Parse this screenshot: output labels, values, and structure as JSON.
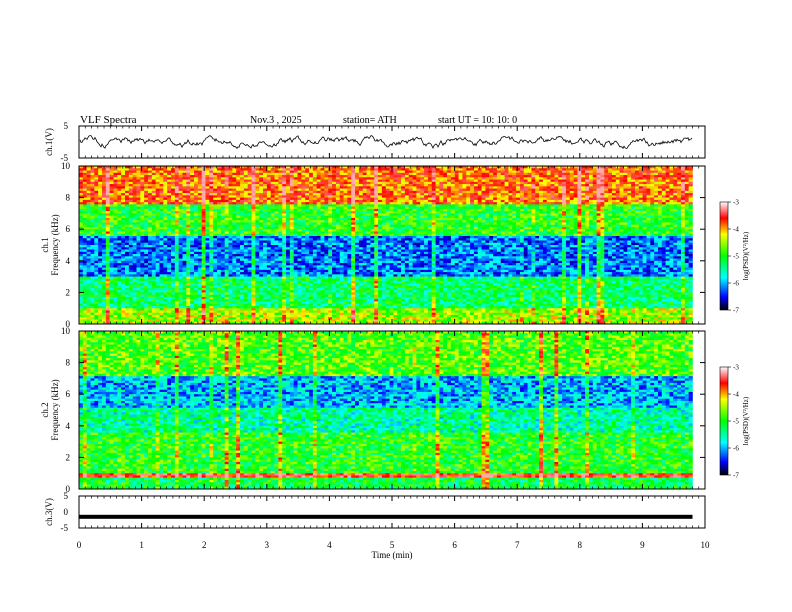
{
  "header": {
    "title": "VLF  Spectra",
    "date": "Nov.3  , 2025",
    "station": "station= ATH",
    "start_ut": "start  UT  =    10: 10: 0"
  },
  "colors": {
    "spectrogram_scale": [
      "#000080",
      "#0000ff",
      "#0080ff",
      "#00ffff",
      "#00ff00",
      "#ffff00",
      "#ff8000",
      "#ff0000",
      "#ffffff"
    ]
  },
  "chart_data": [
    {
      "type": "line",
      "panel": "ch1-waveform",
      "ylabel": "ch.1(V)",
      "ylim": [
        -5,
        5
      ],
      "ytick_labels": [
        "5",
        "-5"
      ],
      "xlim": [
        0,
        10
      ],
      "description_of_series": "noisy voltage trace oscillating roughly between -2 and +2 V",
      "series_amplitude_v": 2
    },
    {
      "type": "heatmap",
      "panel": "ch1-spectrogram",
      "ylabel": "ch.1\nFrequency (kHz)",
      "ylabel_line1": "ch.1",
      "ylabel_line2": "Frequency  (kHz)",
      "ylim": [
        0,
        10
      ],
      "ytick_labels": [
        "10",
        "8",
        "6",
        "4",
        "2",
        "0"
      ],
      "xlim": [
        0,
        9.8
      ],
      "colorbar": {
        "label": "log(PSD)(V²/Hz)",
        "range": [
          -7,
          -3
        ],
        "tick_labels": [
          "-3",
          "-4",
          "-5",
          "-6",
          "-7"
        ]
      },
      "bands_khz": [
        {
          "from": 0,
          "to": 1,
          "level": -4.5
        },
        {
          "from": 1,
          "to": 3,
          "level": -5.3
        },
        {
          "from": 3,
          "to": 5.5,
          "level": -6.2
        },
        {
          "from": 5.5,
          "to": 7.5,
          "level": -5.0
        },
        {
          "from": 7.5,
          "to": 10,
          "level": -3.8
        }
      ]
    },
    {
      "type": "heatmap",
      "panel": "ch2-spectrogram",
      "ylabel_line1": "ch.2",
      "ylabel_line2": "Frequency  (kHz)",
      "ylim": [
        0,
        10
      ],
      "ytick_labels": [
        "10",
        "8",
        "6",
        "4",
        "2",
        "0"
      ],
      "xlim": [
        0,
        9.8
      ],
      "colorbar": {
        "label": "log(PSD)(V²/Hz)",
        "range": [
          -7,
          -3
        ],
        "tick_labels": [
          "-3",
          "-4",
          "-5",
          "-6",
          "-7"
        ]
      },
      "bands_khz": [
        {
          "from": 0,
          "to": 0.7,
          "level": -5.2
        },
        {
          "from": 0.7,
          "to": 1.0,
          "level": -3.5
        },
        {
          "from": 1.0,
          "to": 3.5,
          "level": -5.0
        },
        {
          "from": 3.5,
          "to": 5.2,
          "level": -5.5
        },
        {
          "from": 5.2,
          "to": 7.2,
          "level": -6.0
        },
        {
          "from": 7.2,
          "to": 10,
          "level": -4.8
        }
      ]
    },
    {
      "type": "line",
      "panel": "ch3-waveform",
      "ylabel": "ch.3(V)",
      "ylim": [
        -5,
        5
      ],
      "ytick_labels": [
        "5",
        "0",
        "-5"
      ],
      "xlim": [
        0,
        10
      ],
      "series_level_v": -1.5
    }
  ],
  "x_axis": {
    "label": "Time  (min)",
    "range": [
      0,
      10
    ],
    "tick_labels": [
      "0",
      "1",
      "2",
      "3",
      "4",
      "5",
      "6",
      "7",
      "8",
      "9",
      "10"
    ]
  }
}
